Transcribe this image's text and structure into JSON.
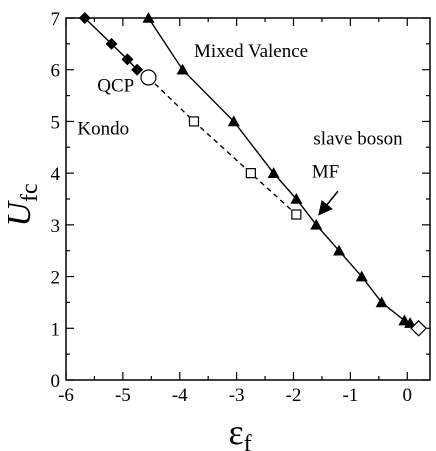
{
  "chart_data": {
    "type": "scatter",
    "xlabel": "ε",
    "xlabel_sub": "f",
    "ylabel": "U",
    "ylabel_sub": "fc",
    "xlim": [
      -6,
      0.4
    ],
    "ylim": [
      0,
      7
    ],
    "xticks": [
      -6,
      -5,
      -4,
      -3,
      -2,
      -1,
      0
    ],
    "xtick_labels": [
      "-6",
      "-5",
      "-4",
      "-3",
      "-2",
      "-1",
      "0"
    ],
    "yticks": [
      0,
      1,
      2,
      3,
      4,
      5,
      6,
      7
    ],
    "ytick_labels": [
      "0",
      "1",
      "2",
      "3",
      "4",
      "5",
      "6",
      "7"
    ],
    "grid": false,
    "series": [
      {
        "marker": "diamond-filled",
        "line": "solid",
        "x": [
          -5.67,
          -5.2,
          -4.92,
          -4.75
        ],
        "y": [
          7.0,
          6.5,
          6.2,
          6.0
        ]
      },
      {
        "marker": "triangle-filled",
        "line": "solid",
        "x": [
          -4.55,
          -3.95,
          -3.05,
          -2.35,
          -1.95,
          -1.6,
          -1.2,
          -0.8,
          -0.45,
          -0.05,
          0.05
        ],
        "y": [
          7.0,
          6.0,
          5.0,
          4.0,
          3.5,
          3.0,
          2.5,
          2.0,
          1.5,
          1.15,
          1.1
        ]
      },
      {
        "marker": "square-open",
        "line": "dashed",
        "x": [
          -4.55,
          -3.75,
          -2.75,
          -1.95
        ],
        "y": [
          5.85,
          5.0,
          4.0,
          3.2
        ]
      },
      {
        "marker": "circle-open",
        "line": "none",
        "x": [
          -4.55
        ],
        "y": [
          5.85
        ]
      },
      {
        "marker": "diamond-open",
        "line": "none",
        "x": [
          0.2
        ],
        "y": [
          1.0
        ]
      }
    ],
    "annotations": [
      {
        "text": "Mixed Valence",
        "x": -3.75,
        "y": 6.25
      },
      {
        "text": "QCP",
        "x": -5.45,
        "y": 5.58
      },
      {
        "text": "Kondo",
        "x": -5.8,
        "y": 4.75
      },
      {
        "text": "slave boson",
        "x": -1.65,
        "y": 4.55
      },
      {
        "text": "MF",
        "x": -1.68,
        "y": 3.92
      }
    ],
    "arrow": {
      "from": [
        -1.22,
        3.65
      ],
      "to": [
        -1.55,
        3.2
      ]
    }
  }
}
